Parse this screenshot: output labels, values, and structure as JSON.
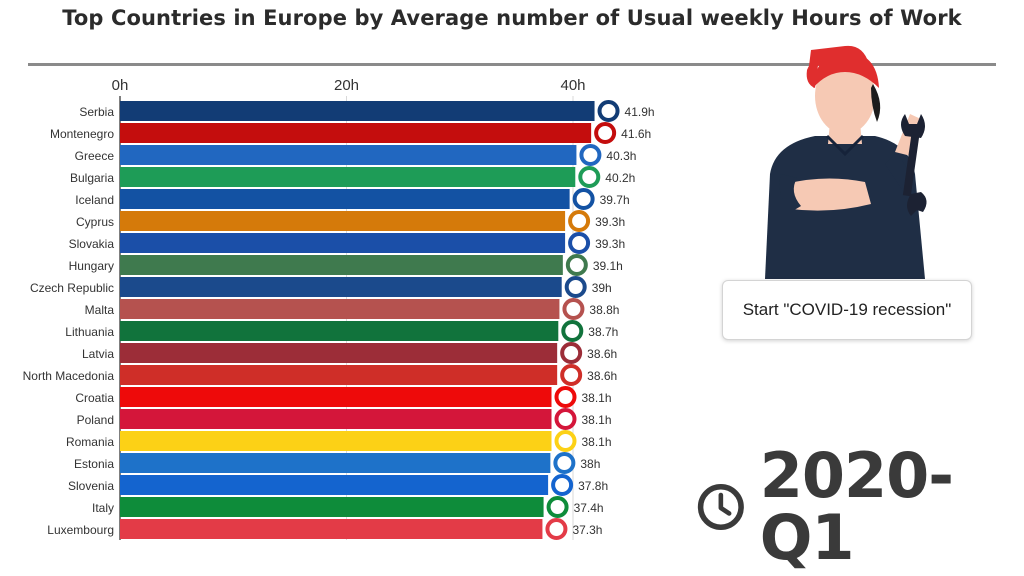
{
  "title": "Top Countries in Europe by Average number of Usual weekly Hours of Work",
  "caption": "Start \"COVID-19 recession\"",
  "period": "2020-Q1",
  "icons": {
    "clock": "clock-icon",
    "worker": "worker-with-wrench-illustration"
  },
  "chart_data": {
    "type": "bar",
    "orientation": "horizontal",
    "xlim": [
      0,
      43
    ],
    "ticks": [
      {
        "value": 0,
        "label": "0h"
      },
      {
        "value": 20,
        "label": "20h"
      },
      {
        "value": 40,
        "label": "40h"
      }
    ],
    "grid": true,
    "categories": [
      "Serbia",
      "Montenegro",
      "Greece",
      "Bulgaria",
      "Iceland",
      "Cyprus",
      "Slovakia",
      "Hungary",
      "Czech Republic",
      "Malta",
      "Lithuania",
      "Latvia",
      "North Macedonia",
      "Croatia",
      "Poland",
      "Romania",
      "Estonia",
      "Slovenia",
      "Italy",
      "Luxembourg"
    ],
    "values": [
      41.9,
      41.6,
      40.3,
      40.2,
      39.7,
      39.3,
      39.3,
      39.1,
      39.0,
      38.8,
      38.7,
      38.6,
      38.6,
      38.1,
      38.1,
      38.1,
      38.0,
      37.8,
      37.4,
      37.3
    ],
    "value_labels": [
      "41.9h",
      "41.6h",
      "40.3h",
      "40.2h",
      "39.7h",
      "39.3h",
      "39.3h",
      "39.1h",
      "39h",
      "38.8h",
      "38.7h",
      "38.6h",
      "38.6h",
      "38.1h",
      "38.1h",
      "38.1h",
      "38h",
      "37.8h",
      "37.4h",
      "37.3h"
    ],
    "colors": [
      "#123c75",
      "#c40d0d",
      "#2167c0",
      "#1e9c57",
      "#1352a3",
      "#d57a0a",
      "#1b4fa8",
      "#3f7a4e",
      "#1b4a8c",
      "#b5524f",
      "#11733c",
      "#9c2d38",
      "#cf2e28",
      "#ee0a0a",
      "#d4163a",
      "#fcd116",
      "#1e72c9",
      "#1464cf",
      "#0e8c3a",
      "#e33b47"
    ]
  }
}
